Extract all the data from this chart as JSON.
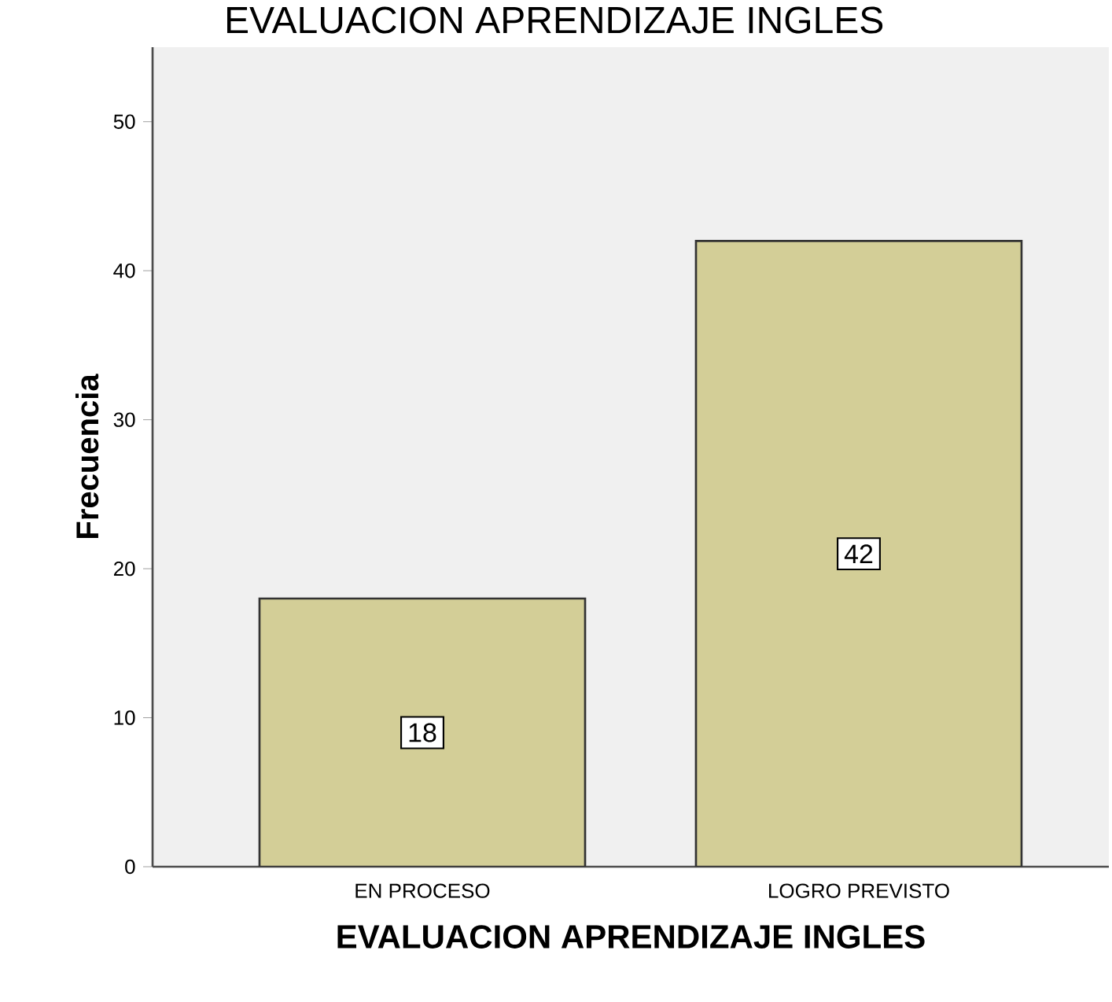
{
  "chart_data": {
    "type": "bar",
    "title": "EVALUACION APRENDIZAJE INGLES",
    "xlabel": "EVALUACION APRENDIZAJE INGLES",
    "ylabel": "Frecuencia",
    "categories": [
      "EN PROCESO",
      "LOGRO PREVISTO"
    ],
    "values": [
      18,
      42
    ],
    "color": "#d3ce97",
    "data_labels": true,
    "ylim": [
      0,
      55
    ],
    "yticks": [
      0,
      10,
      20,
      30,
      40,
      50
    ]
  }
}
